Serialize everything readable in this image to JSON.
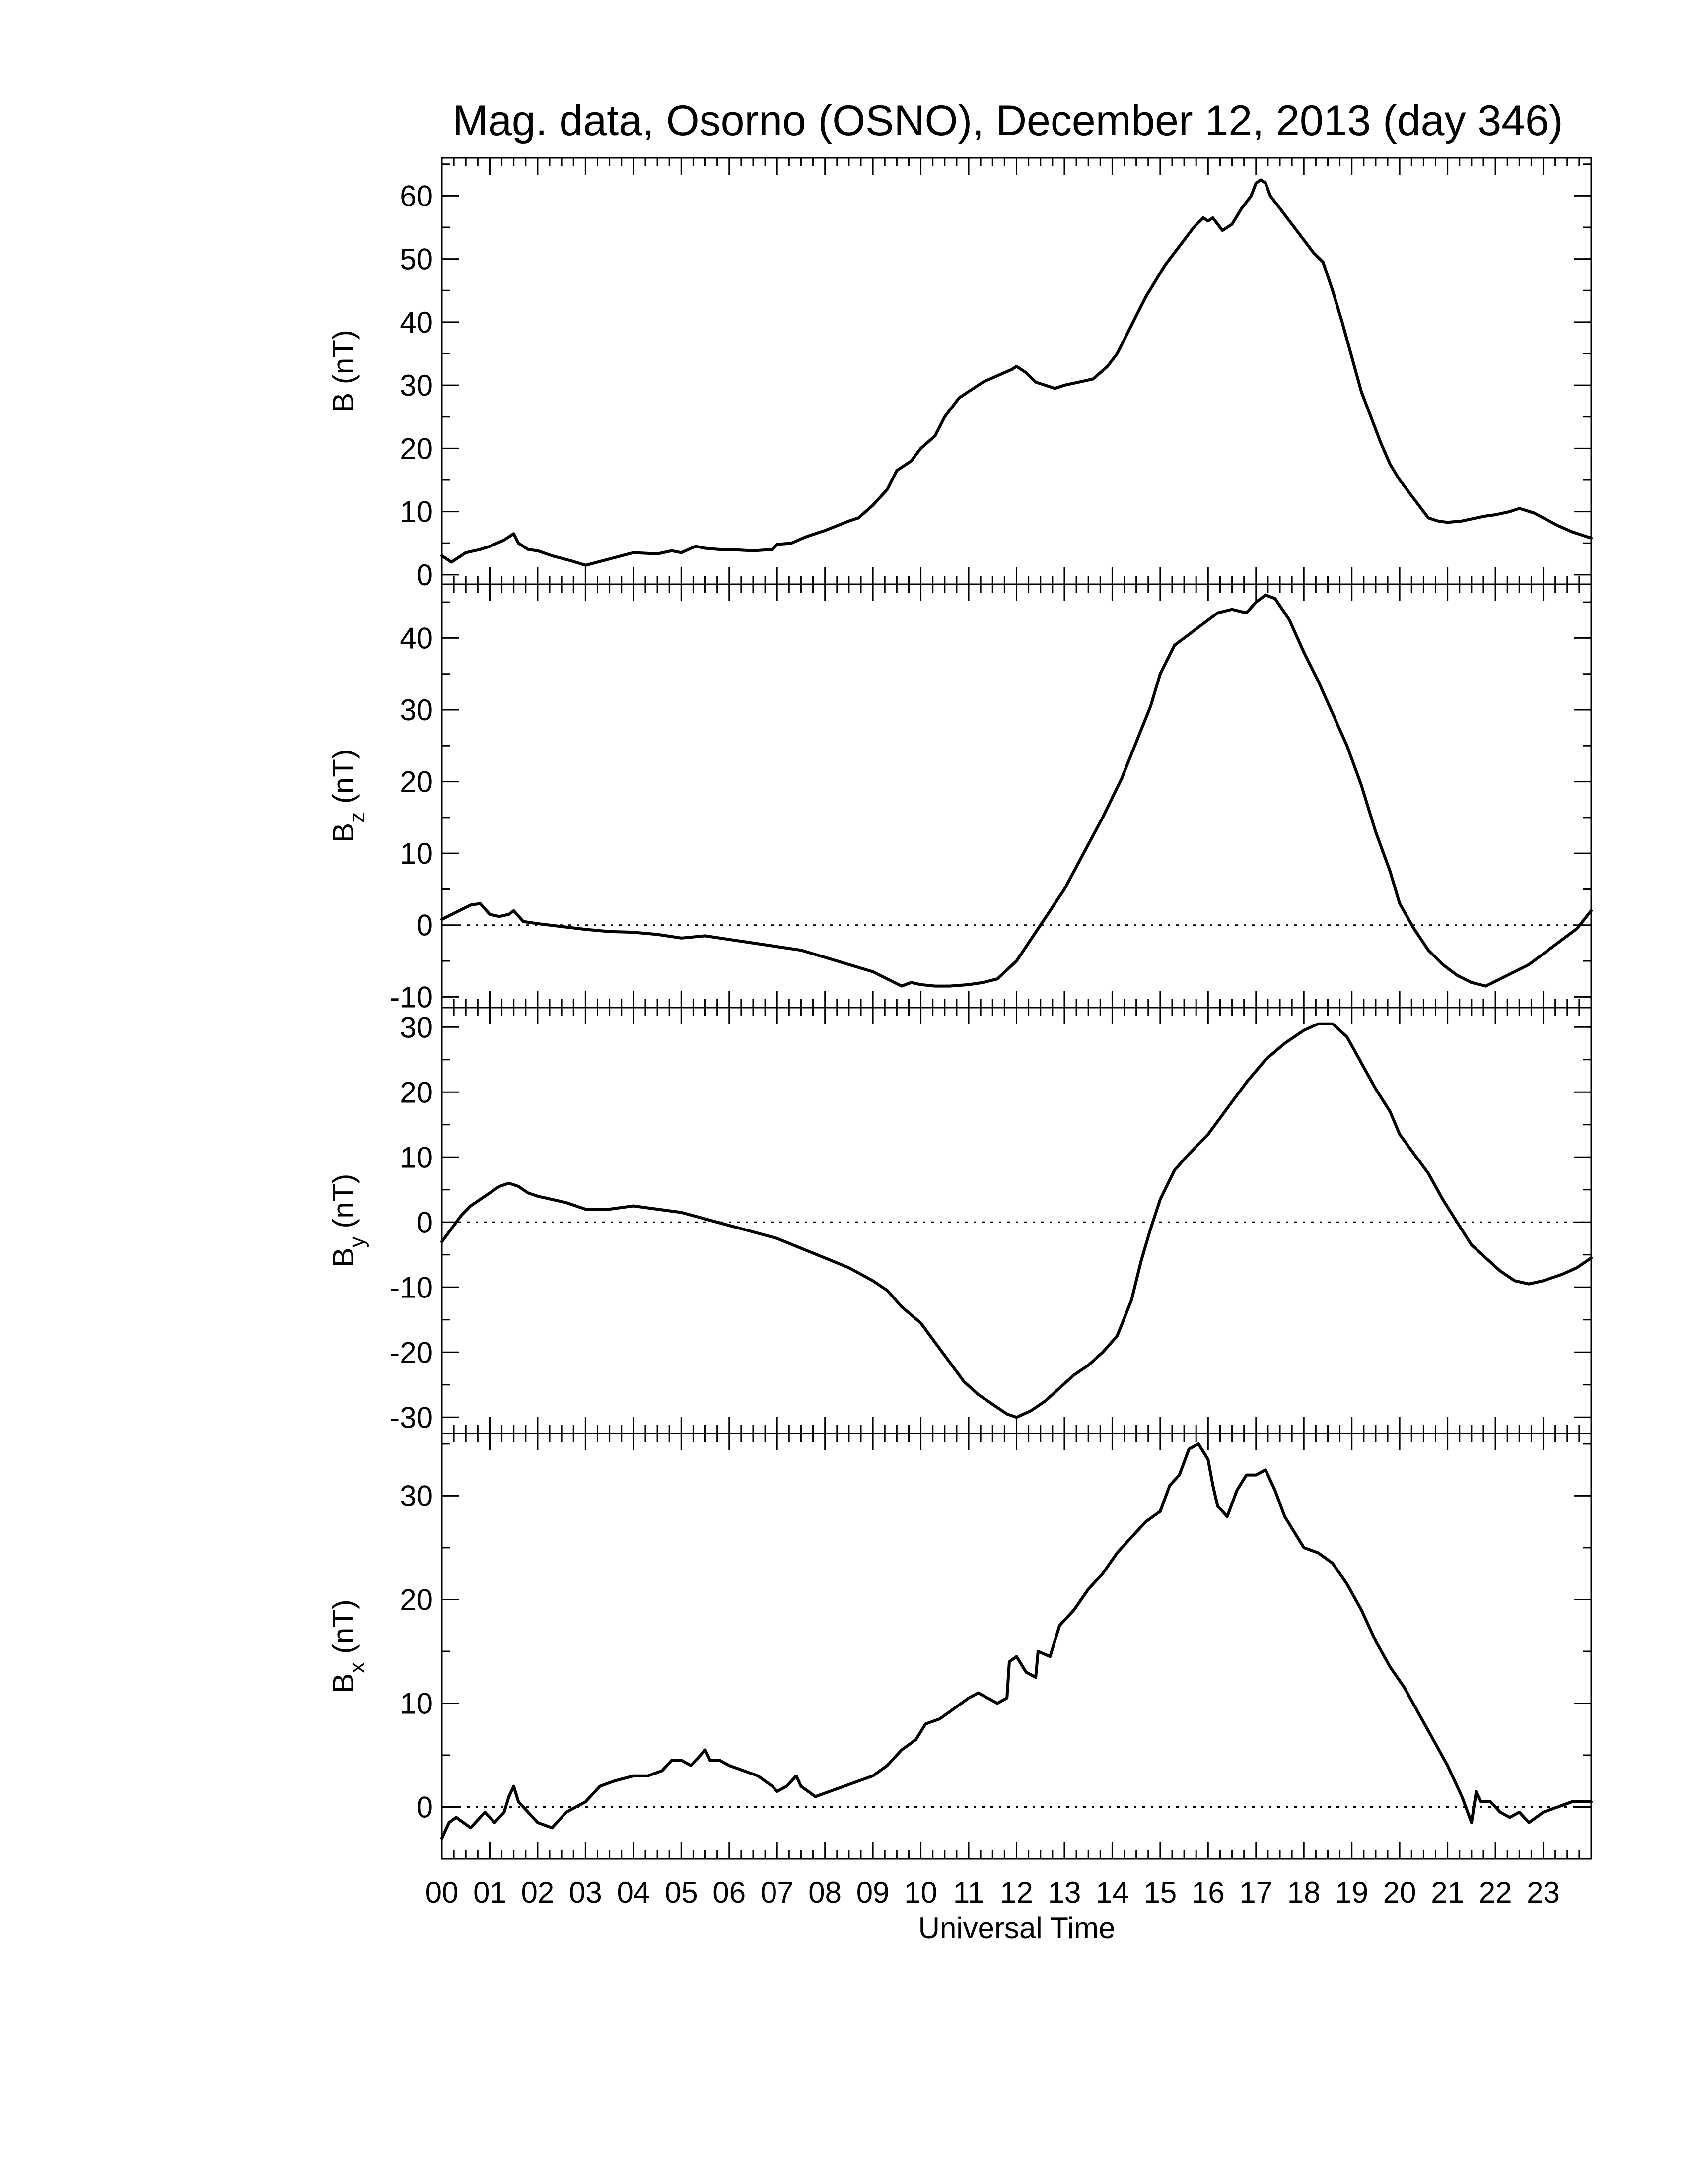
{
  "title": "Mag. data, Osorno (OSNO), December 12, 2013 (day 346)",
  "xlabel": "Universal Time",
  "colors": {
    "trace": "#000000",
    "background": "#ffffff",
    "frame": "#000000"
  },
  "chart_data": [
    {
      "type": "line",
      "ylabel": "B (nT)",
      "ylabel_main": "B",
      "ylabel_sub": "",
      "ylabel_unit": " (nT)",
      "xlim": [
        0,
        24
      ],
      "ylim": [
        -1.5,
        66
      ],
      "yticks": [
        0,
        10,
        20,
        30,
        40,
        50,
        60
      ],
      "ytick_labels": [
        "0",
        "10",
        "20",
        "30",
        "40",
        "50",
        "60"
      ],
      "minor_y": 2,
      "zero_line": false,
      "series": [
        {
          "x": [
            0.0,
            0.2,
            0.5,
            0.8,
            1.0,
            1.3,
            1.5,
            1.6,
            1.8,
            2.0,
            2.3,
            2.7,
            3.0,
            3.5,
            4.0,
            4.5,
            4.8,
            5.0,
            5.3,
            5.5,
            5.8,
            6.0,
            6.5,
            6.9,
            7.0,
            7.3,
            7.6,
            8.0,
            8.5,
            8.7,
            9.0,
            9.3,
            9.5,
            9.8,
            10.0,
            10.3,
            10.5,
            10.8,
            11.0,
            11.3,
            11.6,
            11.9,
            12.0,
            12.2,
            12.4,
            12.6,
            12.8,
            13.0,
            13.3,
            13.6,
            13.9,
            14.1,
            14.3,
            14.5,
            14.7,
            14.9,
            15.1,
            15.4,
            15.7,
            15.9,
            16.0,
            16.1,
            16.3,
            16.5,
            16.7,
            16.9,
            17.0,
            17.1,
            17.2,
            17.3,
            17.5,
            17.7,
            17.9,
            18.0,
            18.2,
            18.4,
            18.6,
            18.8,
            19.0,
            19.2,
            19.4,
            19.6,
            19.8,
            20.0,
            20.2,
            20.4,
            20.6,
            20.8,
            21.0,
            21.3,
            21.6,
            21.8,
            22.0,
            22.3,
            22.5,
            22.8,
            23.0,
            23.3,
            23.6,
            23.8,
            24.0
          ],
          "y": [
            3.0,
            2.0,
            3.5,
            4.0,
            4.5,
            5.5,
            6.5,
            5.0,
            4.0,
            3.8,
            3.0,
            2.2,
            1.5,
            2.5,
            3.5,
            3.3,
            3.8,
            3.5,
            4.5,
            4.2,
            4.0,
            4.0,
            3.8,
            4.0,
            4.8,
            5.0,
            6.0,
            7.0,
            8.5,
            9.0,
            11.0,
            13.5,
            16.5,
            18.0,
            20.0,
            22.0,
            25.0,
            28.0,
            29.0,
            30.5,
            31.5,
            32.5,
            33.0,
            32.0,
            30.5,
            30.0,
            29.5,
            30.0,
            30.5,
            31.0,
            33.0,
            35.0,
            38.0,
            41.0,
            44.0,
            46.5,
            49.0,
            52.0,
            55.0,
            56.5,
            56.0,
            56.5,
            54.5,
            55.5,
            58.0,
            60.0,
            62.0,
            62.5,
            62.0,
            60.0,
            58.0,
            56.0,
            54.0,
            53.0,
            51.0,
            49.5,
            45.0,
            40.0,
            34.5,
            29.0,
            25.0,
            21.0,
            17.5,
            15.0,
            13.0,
            11.0,
            9.0,
            8.5,
            8.3,
            8.5,
            9.0,
            9.3,
            9.5,
            10.0,
            10.5,
            9.8,
            9.0,
            7.8,
            6.8,
            6.3,
            5.8
          ]
        }
      ]
    },
    {
      "type": "line",
      "ylabel": "Bz (nT)",
      "ylabel_main": "B",
      "ylabel_sub": "z",
      "ylabel_unit": " (nT)",
      "xlim": [
        0,
        24
      ],
      "ylim": [
        -11.5,
        47.5
      ],
      "yticks": [
        -10,
        0,
        10,
        20,
        30,
        40
      ],
      "ytick_labels": [
        "-10",
        "0",
        "10",
        "20",
        "30",
        "40"
      ],
      "minor_y": 2,
      "zero_line": true,
      "series": [
        {
          "x": [
            0.0,
            0.3,
            0.6,
            0.8,
            1.0,
            1.2,
            1.4,
            1.5,
            1.7,
            2.0,
            2.5,
            3.0,
            3.5,
            4.0,
            4.5,
            5.0,
            5.5,
            6.0,
            6.5,
            7.0,
            7.5,
            8.0,
            8.5,
            9.0,
            9.3,
            9.6,
            9.8,
            10.0,
            10.3,
            10.6,
            11.0,
            11.3,
            11.6,
            12.0,
            12.3,
            12.6,
            13.0,
            13.4,
            13.8,
            14.2,
            14.5,
            14.8,
            15.0,
            15.3,
            15.6,
            15.9,
            16.2,
            16.5,
            16.8,
            17.0,
            17.2,
            17.4,
            17.7,
            18.0,
            18.3,
            18.6,
            18.9,
            19.2,
            19.5,
            19.8,
            20.0,
            20.3,
            20.6,
            20.9,
            21.2,
            21.5,
            21.8,
            22.1,
            22.4,
            22.7,
            23.0,
            23.4,
            23.7,
            24.0
          ],
          "y": [
            0.8,
            1.8,
            2.8,
            3.0,
            1.5,
            1.2,
            1.5,
            2.0,
            0.5,
            0.2,
            -0.2,
            -0.6,
            -0.9,
            -1.0,
            -1.3,
            -1.8,
            -1.5,
            -2.0,
            -2.5,
            -3.0,
            -3.5,
            -4.5,
            -5.5,
            -6.5,
            -7.5,
            -8.5,
            -8.0,
            -8.3,
            -8.5,
            -8.5,
            -8.3,
            -8.0,
            -7.5,
            -5.0,
            -2.0,
            1.0,
            5.0,
            10.0,
            15.0,
            20.5,
            25.5,
            30.5,
            35.0,
            39.0,
            40.5,
            42.0,
            43.5,
            44.0,
            43.5,
            45.0,
            46.0,
            45.5,
            42.5,
            38.0,
            34.0,
            29.5,
            25.0,
            19.5,
            13.0,
            7.5,
            3.0,
            -0.5,
            -3.5,
            -5.5,
            -7.0,
            -8.0,
            -8.5,
            -7.5,
            -6.5,
            -5.5,
            -4.0,
            -2.0,
            -0.5,
            2.0
          ]
        }
      ]
    },
    {
      "type": "line",
      "ylabel": "By (nT)",
      "ylabel_main": "B",
      "ylabel_sub": "y",
      "ylabel_unit": " (nT)",
      "xlim": [
        0,
        24
      ],
      "ylim": [
        -32.5,
        33
      ],
      "yticks": [
        -30,
        -20,
        -10,
        0,
        10,
        20,
        30
      ],
      "ytick_labels": [
        "-30",
        "-20",
        "-10",
        "0",
        "10",
        "20",
        "30"
      ],
      "minor_y": 2,
      "zero_line": true,
      "series": [
        {
          "x": [
            0.0,
            0.2,
            0.4,
            0.6,
            0.8,
            1.0,
            1.2,
            1.4,
            1.6,
            1.8,
            2.0,
            2.3,
            2.6,
            3.0,
            3.5,
            4.0,
            4.5,
            5.0,
            5.5,
            6.0,
            6.5,
            7.0,
            7.5,
            8.0,
            8.5,
            9.0,
            9.3,
            9.6,
            10.0,
            10.3,
            10.6,
            10.9,
            11.2,
            11.5,
            11.8,
            12.0,
            12.3,
            12.6,
            12.9,
            13.2,
            13.5,
            13.8,
            14.1,
            14.4,
            14.6,
            14.8,
            15.0,
            15.3,
            15.6,
            16.0,
            16.4,
            16.8,
            17.2,
            17.6,
            18.0,
            18.3,
            18.6,
            18.9,
            19.2,
            19.5,
            19.8,
            20.0,
            20.3,
            20.6,
            20.9,
            21.2,
            21.5,
            21.8,
            22.1,
            22.4,
            22.7,
            23.0,
            23.4,
            23.7,
            24.0
          ],
          "y": [
            -3.0,
            -1.0,
            1.0,
            2.5,
            3.5,
            4.5,
            5.5,
            6.0,
            5.5,
            4.5,
            4.0,
            3.5,
            3.0,
            2.0,
            2.0,
            2.5,
            2.0,
            1.5,
            0.5,
            -0.5,
            -1.5,
            -2.5,
            -4.0,
            -5.5,
            -7.0,
            -9.0,
            -10.5,
            -13.0,
            -15.5,
            -18.5,
            -21.5,
            -24.5,
            -26.5,
            -28.0,
            -29.5,
            -30.0,
            -29.0,
            -27.5,
            -25.5,
            -23.5,
            -22.0,
            -20.0,
            -17.5,
            -12.0,
            -6.0,
            -1.0,
            3.5,
            8.0,
            10.5,
            13.5,
            17.5,
            21.5,
            25.0,
            27.5,
            29.5,
            30.5,
            30.5,
            28.5,
            24.5,
            20.5,
            17.0,
            13.5,
            10.5,
            7.5,
            3.5,
            0.0,
            -3.5,
            -5.5,
            -7.5,
            -9.0,
            -9.5,
            -9.0,
            -8.0,
            -7.0,
            -5.5
          ]
        }
      ]
    },
    {
      "type": "line",
      "ylabel": "Bx (nT)",
      "ylabel_main": "B",
      "ylabel_sub": "x",
      "ylabel_unit": " (nT)",
      "xlim": [
        0,
        24
      ],
      "ylim": [
        -5,
        36
      ],
      "yticks": [
        0,
        10,
        20,
        30
      ],
      "ytick_labels": [
        "0",
        "10",
        "20",
        "30"
      ],
      "minor_y": 2,
      "zero_line": true,
      "series": [
        {
          "x": [
            0.0,
            0.15,
            0.3,
            0.6,
            0.9,
            1.1,
            1.3,
            1.4,
            1.5,
            1.6,
            1.8,
            2.0,
            2.3,
            2.6,
            3.0,
            3.3,
            3.6,
            4.0,
            4.3,
            4.6,
            4.8,
            5.0,
            5.2,
            5.4,
            5.5,
            5.6,
            5.8,
            6.0,
            6.3,
            6.6,
            6.9,
            7.0,
            7.2,
            7.4,
            7.5,
            7.8,
            8.1,
            8.4,
            8.7,
            9.0,
            9.3,
            9.6,
            9.9,
            10.1,
            10.4,
            10.7,
            11.0,
            11.2,
            11.4,
            11.6,
            11.8,
            11.85,
            12.0,
            12.2,
            12.4,
            12.45,
            12.7,
            12.9,
            13.0,
            13.2,
            13.5,
            13.8,
            14.1,
            14.4,
            14.7,
            15.0,
            15.2,
            15.4,
            15.6,
            15.8,
            16.0,
            16.1,
            16.2,
            16.4,
            16.6,
            16.8,
            17.0,
            17.2,
            17.4,
            17.6,
            17.8,
            18.0,
            18.3,
            18.6,
            18.9,
            19.2,
            19.5,
            19.8,
            20.1,
            20.4,
            20.7,
            21.0,
            21.3,
            21.5,
            21.6,
            21.7,
            21.9,
            22.1,
            22.3,
            22.5,
            22.7,
            23.0,
            23.3,
            23.6,
            23.8,
            24.0
          ],
          "y": [
            -3.0,
            -1.5,
            -1.0,
            -2.0,
            -0.5,
            -1.5,
            -0.5,
            1.0,
            2.0,
            0.5,
            -0.5,
            -1.5,
            -2.0,
            -0.5,
            0.5,
            2.0,
            2.5,
            3.0,
            3.0,
            3.5,
            4.5,
            4.5,
            4.0,
            5.0,
            5.5,
            4.5,
            4.5,
            4.0,
            3.5,
            3.0,
            2.0,
            1.5,
            2.0,
            3.0,
            2.0,
            1.0,
            1.5,
            2.0,
            2.5,
            3.0,
            4.0,
            5.5,
            6.5,
            8.0,
            8.5,
            9.5,
            10.5,
            11.0,
            10.5,
            10.0,
            10.5,
            14.0,
            14.5,
            13.0,
            12.5,
            15.0,
            14.5,
            17.5,
            18.0,
            19.0,
            21.0,
            22.5,
            24.5,
            26.0,
            27.5,
            28.5,
            31.0,
            32.0,
            34.5,
            35.0,
            33.5,
            31.0,
            29.0,
            28.0,
            30.5,
            32.0,
            32.0,
            32.5,
            30.5,
            28.0,
            26.5,
            25.0,
            24.5,
            23.5,
            21.5,
            19.0,
            16.0,
            13.5,
            11.5,
            9.0,
            6.5,
            4.0,
            1.0,
            -1.5,
            1.5,
            0.5,
            0.5,
            -0.5,
            -1.0,
            -0.5,
            -1.5,
            -0.5,
            0.0,
            0.5,
            0.5,
            0.5
          ]
        }
      ]
    }
  ]
}
